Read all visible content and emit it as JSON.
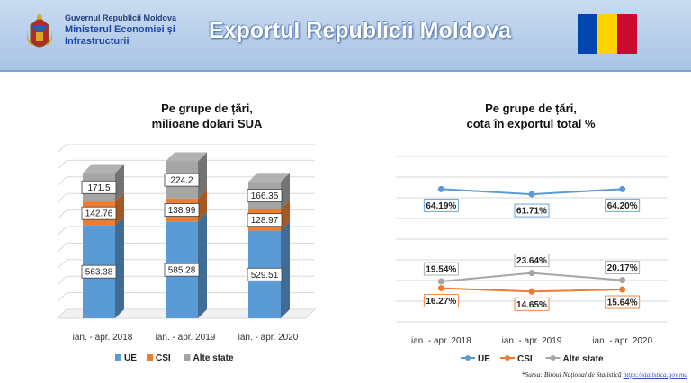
{
  "header": {
    "ministry_line1": "Guvernul Republicii Moldova",
    "ministry_line2": "Ministerul Economiei și",
    "ministry_line3": "Infrastructurii",
    "title": "Exportul Republicii Moldova",
    "flag_colors": [
      "#0046ae",
      "#ffd200",
      "#cc092f"
    ]
  },
  "footnote": {
    "text": "*Sursa: Biroul Național de Statistică",
    "link": "https://statistica.gov.md"
  },
  "colors": {
    "ue": "#5b9bd5",
    "csi": "#ed7d31",
    "alte": "#a5a5a5"
  },
  "chart_data": [
    {
      "type": "bar",
      "stacked": true,
      "title_line1": "Pe grupe de țări,",
      "title_line2": "milioane dolari SUA",
      "categories": [
        "ian. - apr. 2018",
        "ian. - apr. 2019",
        "ian. - apr. 2020"
      ],
      "series": [
        {
          "name": "UE",
          "values": [
            563.38,
            585.28,
            529.51
          ]
        },
        {
          "name": "CSI",
          "values": [
            142.76,
            138.99,
            128.97
          ]
        },
        {
          "name": "Alte state",
          "values": [
            171.5,
            224.2,
            166.35
          ]
        }
      ],
      "value_labels": [
        [
          "563.38",
          "585.28",
          "529.51"
        ],
        [
          "142.76",
          "138.99",
          "128.97"
        ],
        [
          "171.5",
          "224.2",
          "166.35"
        ]
      ],
      "ylim": [
        0,
        1000
      ],
      "grid": true,
      "legend": "bottom"
    },
    {
      "type": "line",
      "title_line1": "Pe grupe de țări,",
      "title_line2": "cota în exportul total %",
      "categories": [
        "ian. - apr. 2018",
        "ian. - apr. 2019",
        "ian. - apr. 2020"
      ],
      "series": [
        {
          "name": "UE",
          "values": [
            64.19,
            61.71,
            64.2
          ],
          "labels": [
            "64.19%",
            "61.71%",
            "64.20%"
          ]
        },
        {
          "name": "CSI",
          "values": [
            16.27,
            14.65,
            15.64
          ],
          "labels": [
            "16.27%",
            "14.65%",
            "15.64%"
          ]
        },
        {
          "name": "Alte state",
          "values": [
            19.54,
            23.64,
            20.17
          ],
          "labels": [
            "19.54%",
            "23.64%",
            "20.17%"
          ]
        }
      ],
      "ylim": [
        0,
        80
      ],
      "grid": true,
      "legend": "bottom"
    }
  ]
}
